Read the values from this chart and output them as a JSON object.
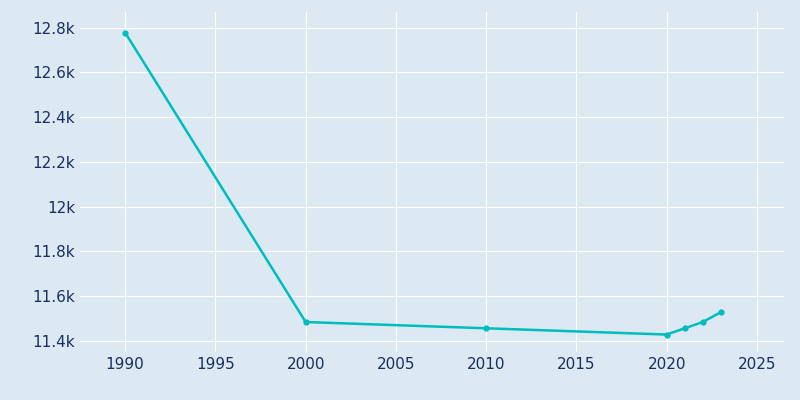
{
  "years": [
    1990,
    2000,
    2010,
    2020,
    2021,
    2022,
    2023
  ],
  "population": [
    12778,
    11484,
    11456,
    11428,
    11456,
    11484,
    11528
  ],
  "line_color": "#00BDBD",
  "line_width": 1.8,
  "bg_color": "#dce9f2",
  "axes_bg_color": "#dce9f2",
  "grid_color": "#ffffff",
  "tick_color": "#1a2f5e",
  "label_color": "#1a2f5e",
  "xlim": [
    1987.5,
    2026.5
  ],
  "ylim": [
    11350,
    12870
  ],
  "xticks": [
    1990,
    1995,
    2000,
    2005,
    2010,
    2015,
    2020,
    2025
  ],
  "yticks": [
    11400,
    11600,
    11800,
    12000,
    12200,
    12400,
    12600,
    12800
  ],
  "ytick_labels": [
    "11.4k",
    "11.6k",
    "11.8k",
    "12k",
    "12.2k",
    "12.4k",
    "12.6k",
    "12.8k"
  ],
  "marker": "o",
  "marker_size": 3.5,
  "tick_fontsize": 11
}
